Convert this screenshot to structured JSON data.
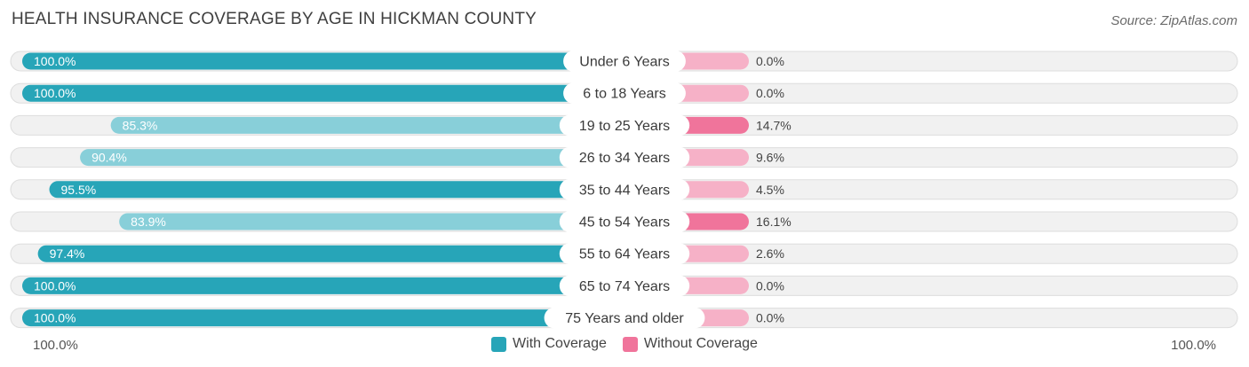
{
  "title": "HEALTH INSURANCE COVERAGE BY AGE IN HICKMAN COUNTY",
  "source": "Source: ZipAtlas.com",
  "colors": {
    "with_strong": "#27a5b8",
    "with_light": "#88cfd9",
    "without_strong": "#f0749b",
    "without_light": "#f6b1c7",
    "track": "#f1f1f1"
  },
  "chart_data": {
    "type": "bar",
    "orientation": "horizontal-diverging",
    "title": "HEALTH INSURANCE COVERAGE BY AGE IN HICKMAN COUNTY",
    "categories": [
      "Under 6 Years",
      "6 to 18 Years",
      "19 to 25 Years",
      "26 to 34 Years",
      "35 to 44 Years",
      "45 to 54 Years",
      "55 to 64 Years",
      "65 to 74 Years",
      "75 Years and older"
    ],
    "series": [
      {
        "name": "With Coverage",
        "values": [
          100.0,
          100.0,
          85.3,
          90.4,
          95.5,
          83.9,
          97.4,
          100.0,
          100.0
        ],
        "labels": [
          "100.0%",
          "100.0%",
          "85.3%",
          "90.4%",
          "95.5%",
          "83.9%",
          "97.4%",
          "100.0%",
          "100.0%"
        ]
      },
      {
        "name": "Without Coverage",
        "values": [
          0.0,
          0.0,
          14.7,
          9.6,
          4.5,
          16.1,
          2.6,
          0.0,
          0.0
        ],
        "labels": [
          "0.0%",
          "0.0%",
          "14.7%",
          "9.6%",
          "4.5%",
          "16.1%",
          "2.6%",
          "0.0%",
          "0.0%"
        ]
      }
    ],
    "axis": {
      "left_label": "100.0%",
      "right_label": "100.0%",
      "range": [
        0,
        100
      ]
    },
    "legend": {
      "placement": "bottom-center",
      "entries": [
        "With Coverage",
        "Without Coverage"
      ]
    }
  }
}
